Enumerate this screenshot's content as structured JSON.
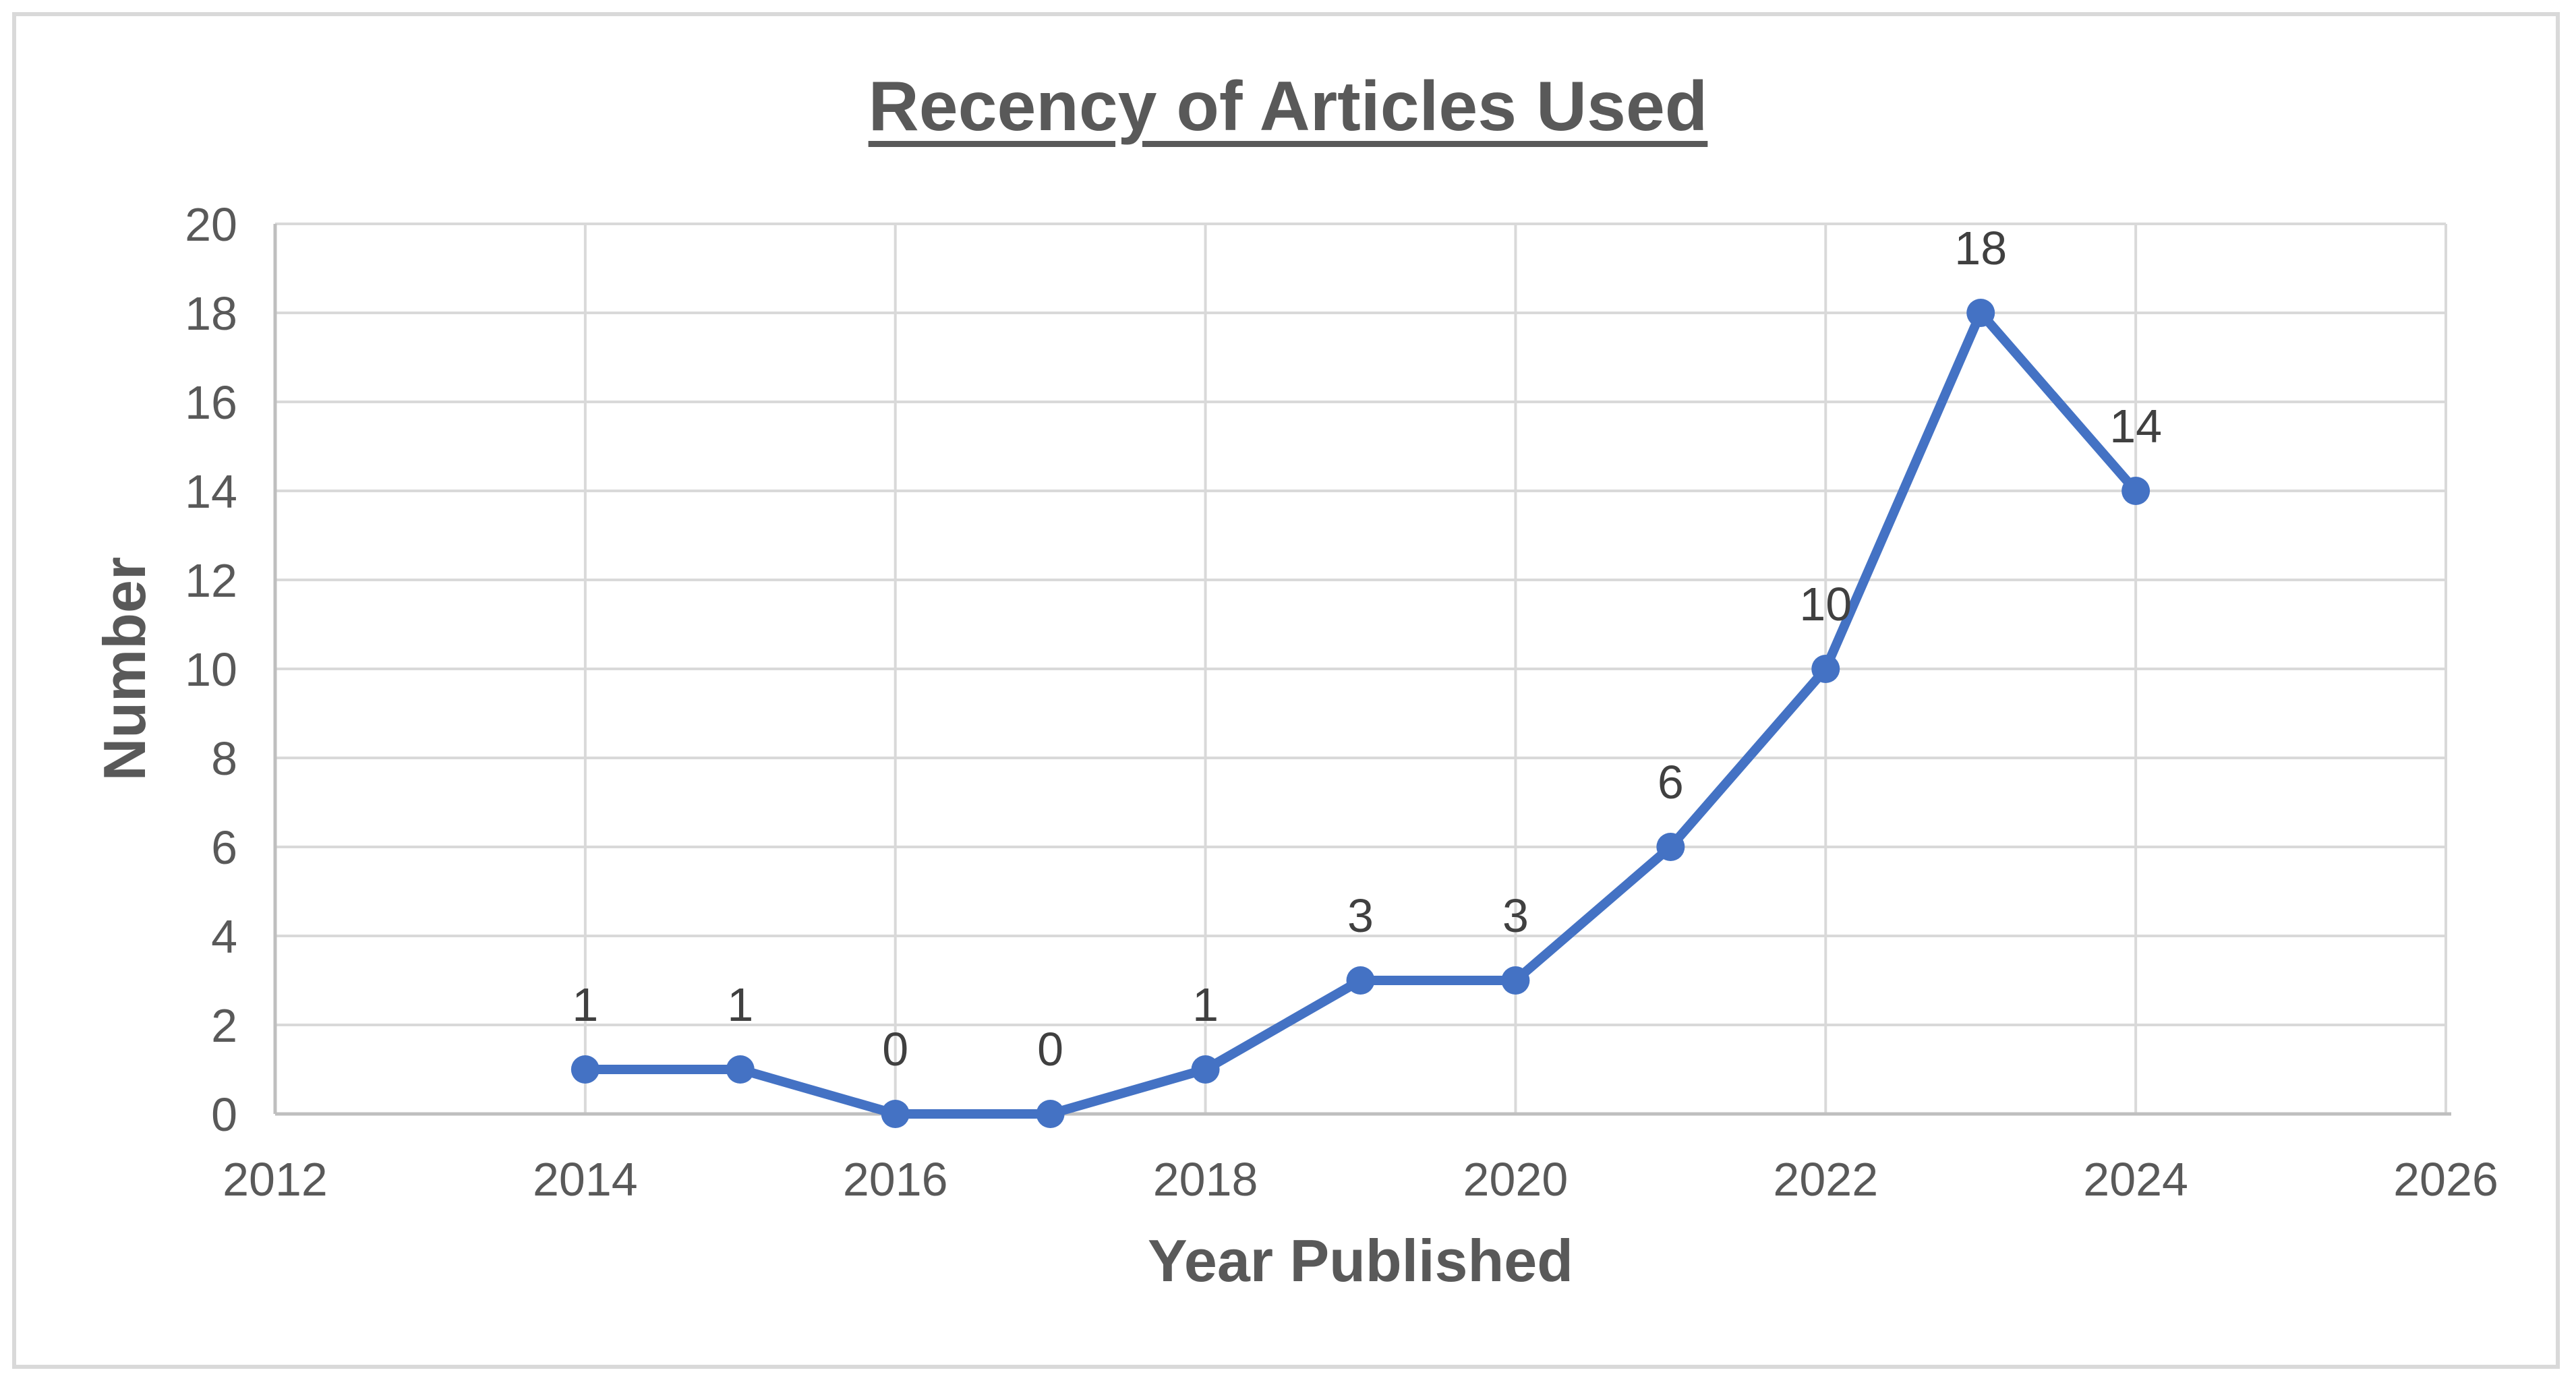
{
  "chart_data": {
    "type": "line",
    "title": "Recency of Articles Used",
    "xlabel": "Year Published",
    "ylabel": "Number",
    "x": [
      2014,
      2015,
      2016,
      2017,
      2018,
      2019,
      2020,
      2021,
      2022,
      2023,
      2024
    ],
    "values": [
      1,
      1,
      0,
      0,
      1,
      3,
      3,
      6,
      10,
      18,
      14
    ],
    "data_labels": [
      "1",
      "1",
      "0",
      "0",
      "1",
      "3",
      "3",
      "6",
      "10",
      "18",
      "14"
    ],
    "xlim": [
      2012,
      2026
    ],
    "ylim": [
      0,
      20
    ],
    "x_ticks": [
      "2012",
      "2014",
      "2016",
      "2018",
      "2020",
      "2022",
      "2024",
      "2026"
    ],
    "y_ticks": [
      "0",
      "2",
      "4",
      "6",
      "8",
      "10",
      "12",
      "14",
      "16",
      "18",
      "20"
    ],
    "grid": "both",
    "legend": "none",
    "marker": "circle",
    "colors": {
      "line": "#4472C4",
      "marker": "#4472C4",
      "gridline": "#D9D9D9",
      "axis_line": "#BFBFBF",
      "tick_text": "#595959",
      "title_text": "#595959",
      "data_label_text": "#404040",
      "frame_border": "#D9D9D9",
      "background": "#FFFFFF"
    }
  }
}
